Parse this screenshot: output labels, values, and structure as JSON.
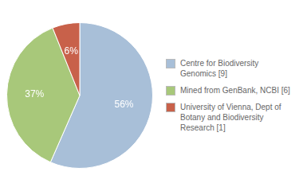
{
  "chart_data": {
    "type": "pie",
    "categories": [
      "Centre for Biodiversity\nGenomics [9]",
      "Mined from GenBank, NCBI [6]",
      "University of Vienna, Dept of\nBotany and Biodiversity\nResearch [1]"
    ],
    "values": [
      56,
      37,
      6
    ],
    "value_labels": [
      "56%",
      "37%",
      "6%"
    ],
    "colors": [
      "#a8bfd8",
      "#a8c87a",
      "#c8614a"
    ],
    "data_labels": true,
    "legend": "right"
  }
}
